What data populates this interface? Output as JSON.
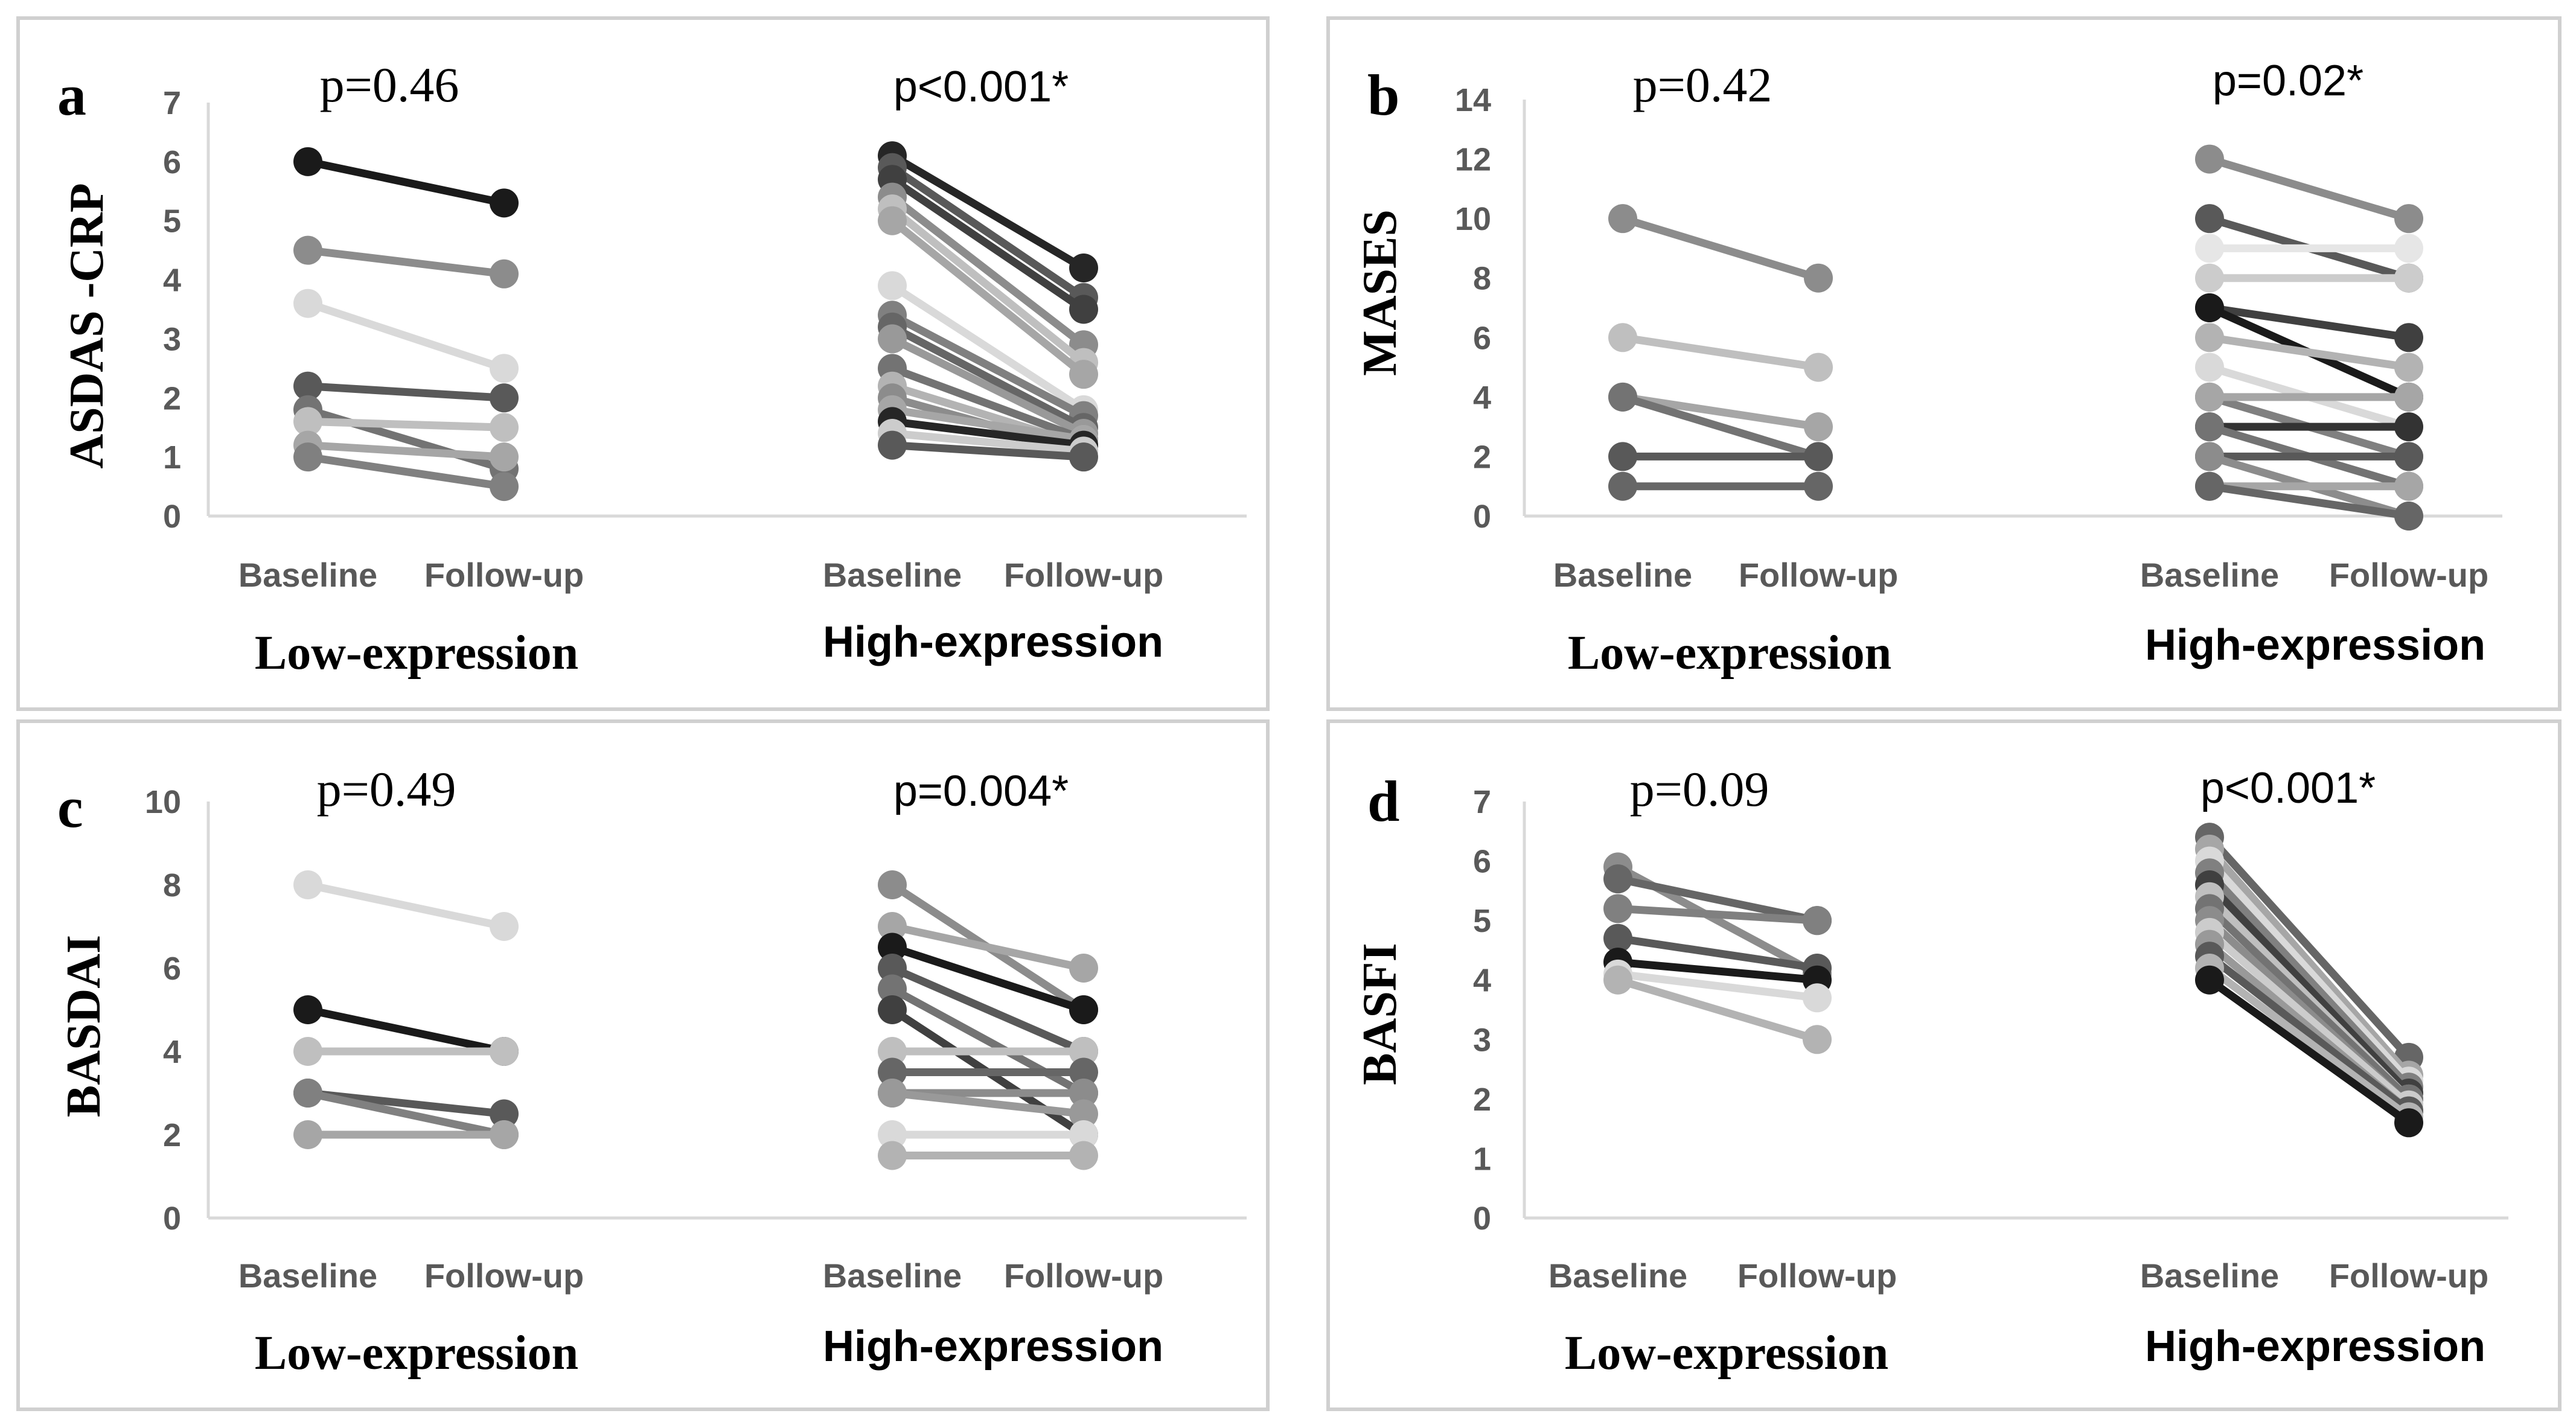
{
  "chart_data": [
    {
      "type": "line",
      "panel": "a",
      "ylabel": "ASDAS -CRP",
      "ylim": [
        0,
        7
      ],
      "yticks": [
        0,
        1,
        2,
        3,
        4,
        5,
        6,
        7
      ],
      "categories": [
        "Baseline",
        "Follow-up"
      ],
      "groups": [
        {
          "name": "Low-expression",
          "p_value": "p=0.46",
          "series": [
            {
              "values": [
                6.0,
                5.3
              ],
              "color": "#1a1a1a"
            },
            {
              "values": [
                4.5,
                4.1
              ],
              "color": "#8c8c8c"
            },
            {
              "values": [
                3.6,
                2.5
              ],
              "color": "#d9d9d9"
            },
            {
              "values": [
                2.2,
                2.0
              ],
              "color": "#595959"
            },
            {
              "values": [
                1.8,
                0.8
              ],
              "color": "#737373"
            },
            {
              "values": [
                1.6,
                1.5
              ],
              "color": "#bfbfbf"
            },
            {
              "values": [
                1.2,
                1.0
              ],
              "color": "#a6a6a6"
            },
            {
              "values": [
                1.0,
                0.5
              ],
              "color": "#808080"
            }
          ]
        },
        {
          "name": "High-expression",
          "p_value": "p<0.001*",
          "series": [
            {
              "values": [
                6.1,
                4.2
              ],
              "color": "#262626"
            },
            {
              "values": [
                5.9,
                3.7
              ],
              "color": "#595959"
            },
            {
              "values": [
                5.7,
                3.5
              ],
              "color": "#404040"
            },
            {
              "values": [
                5.4,
                2.9
              ],
              "color": "#8c8c8c"
            },
            {
              "values": [
                5.2,
                2.6
              ],
              "color": "#bfbfbf"
            },
            {
              "values": [
                5.0,
                2.4
              ],
              "color": "#a6a6a6"
            },
            {
              "values": [
                3.9,
                1.8
              ],
              "color": "#d9d9d9"
            },
            {
              "values": [
                3.4,
                1.7
              ],
              "color": "#808080"
            },
            {
              "values": [
                3.2,
                1.5
              ],
              "color": "#666666"
            },
            {
              "values": [
                3.0,
                1.4
              ],
              "color": "#999999"
            },
            {
              "values": [
                2.5,
                1.3
              ],
              "color": "#737373"
            },
            {
              "values": [
                2.2,
                1.2
              ],
              "color": "#b3b3b3"
            },
            {
              "values": [
                2.0,
                1.1
              ],
              "color": "#8c8c8c"
            },
            {
              "values": [
                1.8,
                1.3
              ],
              "color": "#a6a6a6"
            },
            {
              "values": [
                1.6,
                1.2
              ],
              "color": "#262626"
            },
            {
              "values": [
                1.4,
                1.1
              ],
              "color": "#cccccc"
            },
            {
              "values": [
                1.2,
                1.0
              ],
              "color": "#595959"
            }
          ]
        }
      ]
    },
    {
      "type": "line",
      "panel": "b",
      "ylabel": "MASES",
      "ylim": [
        0,
        14
      ],
      "yticks": [
        0,
        2,
        4,
        6,
        8,
        10,
        12,
        14
      ],
      "categories": [
        "Baseline",
        "Follow-up"
      ],
      "groups": [
        {
          "name": "Low-expression",
          "p_value": "p=0.42",
          "series": [
            {
              "values": [
                10,
                8
              ],
              "color": "#8c8c8c"
            },
            {
              "values": [
                6,
                5
              ],
              "color": "#bfbfbf"
            },
            {
              "values": [
                4,
                3
              ],
              "color": "#a6a6a6"
            },
            {
              "values": [
                4,
                2
              ],
              "color": "#737373"
            },
            {
              "values": [
                2,
                2
              ],
              "color": "#595959"
            },
            {
              "values": [
                1,
                1
              ],
              "color": "#666666"
            }
          ]
        },
        {
          "name": "High-expression",
          "p_value": "p=0.02*",
          "series": [
            {
              "values": [
                12,
                10
              ],
              "color": "#8c8c8c"
            },
            {
              "values": [
                10,
                8
              ],
              "color": "#595959"
            },
            {
              "values": [
                9,
                9
              ],
              "color": "#e6e6e6"
            },
            {
              "values": [
                8,
                8
              ],
              "color": "#cccccc"
            },
            {
              "values": [
                7,
                6
              ],
              "color": "#404040"
            },
            {
              "values": [
                7,
                4
              ],
              "color": "#1a1a1a"
            },
            {
              "values": [
                6,
                5
              ],
              "color": "#b3b3b3"
            },
            {
              "values": [
                5,
                3
              ],
              "color": "#d9d9d9"
            },
            {
              "values": [
                4,
                2
              ],
              "color": "#808080"
            },
            {
              "values": [
                4,
                4
              ],
              "color": "#a6a6a6"
            },
            {
              "values": [
                3,
                3
              ],
              "color": "#333333"
            },
            {
              "values": [
                3,
                1
              ],
              "color": "#737373"
            },
            {
              "values": [
                2,
                2
              ],
              "color": "#595959"
            },
            {
              "values": [
                2,
                0
              ],
              "color": "#8c8c8c"
            },
            {
              "values": [
                1,
                1
              ],
              "color": "#a6a6a6"
            },
            {
              "values": [
                1,
                0
              ],
              "color": "#666666"
            }
          ]
        }
      ]
    },
    {
      "type": "line",
      "panel": "c",
      "ylabel": "BASDAI",
      "ylim": [
        0,
        10
      ],
      "yticks": [
        0,
        2,
        4,
        6,
        8,
        10
      ],
      "categories": [
        "Baseline",
        "Follow-up"
      ],
      "groups": [
        {
          "name": "Low-expression",
          "p_value": "p=0.49",
          "series": [
            {
              "values": [
                8,
                7
              ],
              "color": "#d9d9d9"
            },
            {
              "values": [
                5,
                4
              ],
              "color": "#1a1a1a"
            },
            {
              "values": [
                4,
                4
              ],
              "color": "#bfbfbf"
            },
            {
              "values": [
                3,
                2.5
              ],
              "color": "#595959"
            },
            {
              "values": [
                3,
                2
              ],
              "color": "#808080"
            },
            {
              "values": [
                2,
                2
              ],
              "color": "#a6a6a6"
            }
          ]
        },
        {
          "name": "High-expression",
          "p_value": "p=0.004*",
          "series": [
            {
              "values": [
                8,
                5
              ],
              "color": "#8c8c8c"
            },
            {
              "values": [
                7,
                6
              ],
              "color": "#a6a6a6"
            },
            {
              "values": [
                6.5,
                5
              ],
              "color": "#1a1a1a"
            },
            {
              "values": [
                6,
                4
              ],
              "color": "#595959"
            },
            {
              "values": [
                5.5,
                3
              ],
              "color": "#737373"
            },
            {
              "values": [
                5,
                2
              ],
              "color": "#404040"
            },
            {
              "values": [
                4,
                4
              ],
              "color": "#bfbfbf"
            },
            {
              "values": [
                3.5,
                3.5
              ],
              "color": "#666666"
            },
            {
              "values": [
                3,
                3
              ],
              "color": "#8c8c8c"
            },
            {
              "values": [
                3,
                2.5
              ],
              "color": "#999999"
            },
            {
              "values": [
                2,
                2
              ],
              "color": "#d9d9d9"
            },
            {
              "values": [
                1.5,
                1.5
              ],
              "color": "#b3b3b3"
            }
          ]
        }
      ]
    },
    {
      "type": "line",
      "panel": "d",
      "ylabel": "BASFI",
      "ylim": [
        0,
        7
      ],
      "yticks": [
        0,
        1,
        2,
        3,
        4,
        5,
        6,
        7
      ],
      "categories": [
        "Baseline",
        "Follow-up"
      ],
      "groups": [
        {
          "name": "Low-expression",
          "p_value": "p=0.09",
          "series": [
            {
              "values": [
                5.9,
                4.1
              ],
              "color": "#8c8c8c"
            },
            {
              "values": [
                5.7,
                5.0
              ],
              "color": "#666666"
            },
            {
              "values": [
                5.2,
                5.0
              ],
              "color": "#808080"
            },
            {
              "values": [
                4.7,
                4.2
              ],
              "color": "#595959"
            },
            {
              "values": [
                4.3,
                4.0
              ],
              "color": "#1a1a1a"
            },
            {
              "values": [
                4.1,
                3.7
              ],
              "color": "#d9d9d9"
            },
            {
              "values": [
                4.0,
                3.0
              ],
              "color": "#b3b3b3"
            }
          ]
        },
        {
          "name": "High-expression",
          "p_value": "p<0.001*",
          "series": [
            {
              "values": [
                6.4,
                2.7
              ],
              "color": "#666666"
            },
            {
              "values": [
                6.2,
                2.4
              ],
              "color": "#a6a6a6"
            },
            {
              "values": [
                6.0,
                2.3
              ],
              "color": "#d9d9d9"
            },
            {
              "values": [
                5.8,
                2.2
              ],
              "color": "#808080"
            },
            {
              "values": [
                5.6,
                2.1
              ],
              "color": "#404040"
            },
            {
              "values": [
                5.4,
                2.0
              ],
              "color": "#bfbfbf"
            },
            {
              "values": [
                5.2,
                2.0
              ],
              "color": "#737373"
            },
            {
              "values": [
                5.0,
                1.9
              ],
              "color": "#8c8c8c"
            },
            {
              "values": [
                4.8,
                1.9
              ],
              "color": "#cccccc"
            },
            {
              "values": [
                4.6,
                1.8
              ],
              "color": "#999999"
            },
            {
              "values": [
                4.4,
                1.8
              ],
              "color": "#595959"
            },
            {
              "values": [
                4.2,
                1.7
              ],
              "color": "#b3b3b3"
            },
            {
              "values": [
                4.0,
                1.6
              ],
              "color": "#1a1a1a"
            }
          ]
        }
      ]
    }
  ]
}
